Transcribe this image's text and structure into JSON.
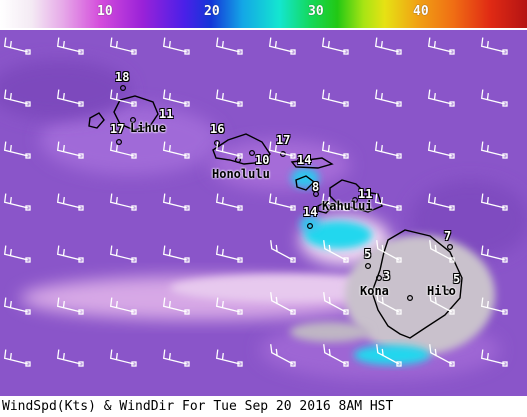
{
  "colorbar": {
    "ticks": [
      "10",
      "20",
      "30",
      "40"
    ],
    "range": [
      0,
      50
    ],
    "units": "Kts"
  },
  "wind_labels": [
    "18",
    "11",
    "17",
    "16",
    "17",
    "10",
    "14",
    "8",
    "11",
    "14",
    "7",
    "5",
    "3",
    "5"
  ],
  "cities": [
    "Lihue",
    "Honolulu",
    "Kahului",
    "Kona",
    "Hilo"
  ],
  "caption": "WindSpd(Kts) & WindDir For Tue Sep 20 2016  8AM HST",
  "colors": {
    "ocean_base": "#8a55c9",
    "calm_gray": "#c9c1cc",
    "fast_cyan": "#23d7ee",
    "coast": "#000000",
    "barb": "#ffffff"
  }
}
